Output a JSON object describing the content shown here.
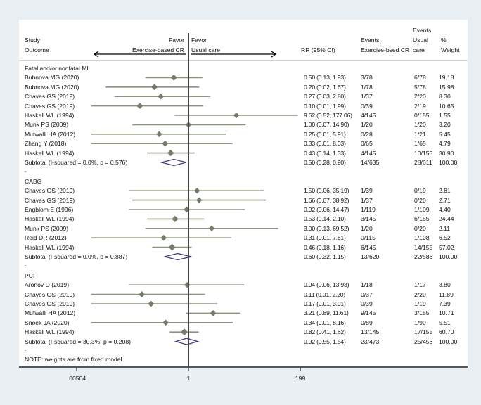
{
  "header": {
    "study": "Study",
    "outcome": "Outcome",
    "favor_left_1": "Favor",
    "favor_left_2": "Exercise-based CR",
    "favor_right_1": "Favor",
    "favor_right_2": "Usual care",
    "rr": "RR (95% CI)",
    "events_ex_1": "Events,",
    "events_ex_2": "Exercise-bsed CR",
    "events_uc_1": "Events,",
    "events_uc_2": "Usual",
    "events_uc_3": "care",
    "weight_1": "%",
    "weight_2": "Weight"
  },
  "note": "NOTE: weights are from fixed model",
  "chart_data": {
    "type": "forest",
    "xscale": "log",
    "xticks": [
      ".00504",
      "1",
      "199"
    ],
    "xtick_values": [
      0.00504,
      1,
      199
    ],
    "null_line": 1,
    "groups": [
      {
        "name": "Fatal and/or nonfatal MI",
        "studies": [
          {
            "study": "Bubnova MG (2020)",
            "rr": 0.5,
            "lo": 0.13,
            "hi": 1.93,
            "label": "0.50 (0.13, 1.93)",
            "ev_ex": "3/78",
            "ev_uc": "6/78",
            "weight": "19.18"
          },
          {
            "study": "Bubnova MG (2020)",
            "rr": 0.2,
            "lo": 0.02,
            "hi": 1.67,
            "label": "0.20 (0.02, 1.67)",
            "ev_ex": "1/78",
            "ev_uc": "5/78",
            "weight": "15.98"
          },
          {
            "study": "Chaves GS (2019)",
            "rr": 0.27,
            "lo": 0.03,
            "hi": 2.8,
            "label": "0.27 (0.03, 2.80)",
            "ev_ex": "1/37",
            "ev_uc": "2/20",
            "weight": "8.30"
          },
          {
            "study": "Chaves GS (2019)",
            "rr": 0.1,
            "lo": 0.01,
            "hi": 1.99,
            "label": "0.10 (0.01, 1.99)",
            "ev_ex": "0/39",
            "ev_uc": "2/19",
            "weight": "10.65"
          },
          {
            "study": "Haskell WL (1994)",
            "rr": 9.62,
            "lo": 0.52,
            "hi": 177.06,
            "label": "9.62 (0.52, 177.06)",
            "ev_ex": "4/145",
            "ev_uc": "0/155",
            "weight": "1.55"
          },
          {
            "study": "Munk PS (2009)",
            "rr": 1.0,
            "lo": 0.07,
            "hi": 14.9,
            "label": "1.00 (0.07, 14.90)",
            "ev_ex": "1/20",
            "ev_uc": "1/20",
            "weight": "3.20"
          },
          {
            "study": "Mutwalli HA (2012)",
            "rr": 0.25,
            "lo": 0.01,
            "hi": 5.91,
            "label": "0.25 (0.01, 5.91)",
            "ev_ex": "0/28",
            "ev_uc": "1/21",
            "weight": "5.45"
          },
          {
            "study": "Zhang Y (2018)",
            "rr": 0.33,
            "lo": 0.01,
            "hi": 8.03,
            "label": "0.33 (0.01, 8.03)",
            "ev_ex": "0/65",
            "ev_uc": "1/65",
            "weight": "4.79"
          },
          {
            "study": "Haskell WL (1994)",
            "rr": 0.43,
            "lo": 0.14,
            "hi": 1.33,
            "label": "0.43 (0.14, 1.33)",
            "ev_ex": "4/145",
            "ev_uc": "10/155",
            "weight": "30.90"
          }
        ],
        "subtotal": {
          "study": "Subtotal  (I-squared = 0.0%, p = 0.576)",
          "rr": 0.5,
          "lo": 0.28,
          "hi": 0.9,
          "label": "0.50 (0.28, 0.90)",
          "ev_ex": "14/635",
          "ev_uc": "28/611",
          "weight": "100.00"
        }
      },
      {
        "name": "CABG",
        "studies": [
          {
            "study": "Chaves GS (2019)",
            "rr": 1.5,
            "lo": 0.06,
            "hi": 35.19,
            "label": "1.50 (0.06, 35.19)",
            "ev_ex": "1/39",
            "ev_uc": "0/19",
            "weight": "2.81"
          },
          {
            "study": "Chaves GS (2019)",
            "rr": 1.66,
            "lo": 0.07,
            "hi": 38.92,
            "label": "1.66 (0.07, 38.92)",
            "ev_ex": "1/37",
            "ev_uc": "0/20",
            "weight": "2.71"
          },
          {
            "study": "Engblom E (1996)",
            "rr": 0.92,
            "lo": 0.06,
            "hi": 14.47,
            "label": "0.92 (0.06, 14.47)",
            "ev_ex": "1/119",
            "ev_uc": "1/109",
            "weight": "4.40"
          },
          {
            "study": "Haskell WL (1994)",
            "rr": 0.53,
            "lo": 0.14,
            "hi": 2.1,
            "label": "0.53 (0.14, 2.10)",
            "ev_ex": "3/145",
            "ev_uc": "6/155",
            "weight": "24.44"
          },
          {
            "study": "Munk PS (2009)",
            "rr": 3.0,
            "lo": 0.13,
            "hi": 69.52,
            "label": "3.00 (0.13, 69.52)",
            "ev_ex": "1/20",
            "ev_uc": "0/20",
            "weight": "2.11"
          },
          {
            "study": "Reid DR (2012)",
            "rr": 0.31,
            "lo": 0.01,
            "hi": 7.61,
            "label": "0.31 (0.01, 7.61)",
            "ev_ex": "0/115",
            "ev_uc": "1/108",
            "weight": "6.52"
          },
          {
            "study": "Haskell WL (1994)",
            "rr": 0.46,
            "lo": 0.18,
            "hi": 1.16,
            "label": "0.46 (0.18, 1.16)",
            "ev_ex": "6/145",
            "ev_uc": "14/155",
            "weight": "57.02"
          }
        ],
        "subtotal": {
          "study": "Subtotal  (I-squared = 0.0%, p = 0.887)",
          "rr": 0.6,
          "lo": 0.32,
          "hi": 1.15,
          "label": "0.60 (0.32, 1.15)",
          "ev_ex": "13/620",
          "ev_uc": "22/586",
          "weight": "100.00"
        }
      },
      {
        "name": "PCI",
        "studies": [
          {
            "study": "Aronov D (2019)",
            "rr": 0.94,
            "lo": 0.06,
            "hi": 13.93,
            "label": "0.94 (0.06, 13.93)",
            "ev_ex": "1/18",
            "ev_uc": "1/17",
            "weight": "3.80"
          },
          {
            "study": "Chaves GS (2019)",
            "rr": 0.11,
            "lo": 0.01,
            "hi": 2.2,
            "label": "0.11 (0.01, 2.20)",
            "ev_ex": "0/37",
            "ev_uc": "2/20",
            "weight": "11.89"
          },
          {
            "study": "Chaves GS (2019)",
            "rr": 0.17,
            "lo": 0.01,
            "hi": 3.91,
            "label": "0.17 (0.01, 3.91)",
            "ev_ex": "0/39",
            "ev_uc": "1/19",
            "weight": "7.39"
          },
          {
            "study": "Mutwalli HA (2012)",
            "rr": 3.21,
            "lo": 0.89,
            "hi": 11.61,
            "label": "3.21 (0.89, 11.61)",
            "ev_ex": "9/145",
            "ev_uc": "3/155",
            "weight": "10.71"
          },
          {
            "study": "Snoek JA (2020)",
            "rr": 0.34,
            "lo": 0.01,
            "hi": 8.16,
            "label": "0.34 (0.01, 8.16)",
            "ev_ex": "0/89",
            "ev_uc": "1/90",
            "weight": "5.51"
          },
          {
            "study": "Haskell WL (1994)",
            "rr": 0.82,
            "lo": 0.41,
            "hi": 1.62,
            "label": "0.82 (0.41, 1.62)",
            "ev_ex": "13/145",
            "ev_uc": "17/155",
            "weight": "60.70"
          }
        ],
        "subtotal": {
          "study": "Subtotal  (I-squared = 30.3%, p = 0.208)",
          "rr": 0.92,
          "lo": 0.55,
          "hi": 1.54,
          "label": "0.92 (0.55, 1.54)",
          "ev_ex": "23/473",
          "ev_uc": "25/456",
          "weight": "100.00"
        }
      }
    ],
    "separator": ".",
    "colors": {
      "ci_line": "#8a9580",
      "marker": "#737c67",
      "subtotal_outline": "#3b3a7a",
      "axis": "#555555",
      "background": "#e8eef2"
    }
  }
}
